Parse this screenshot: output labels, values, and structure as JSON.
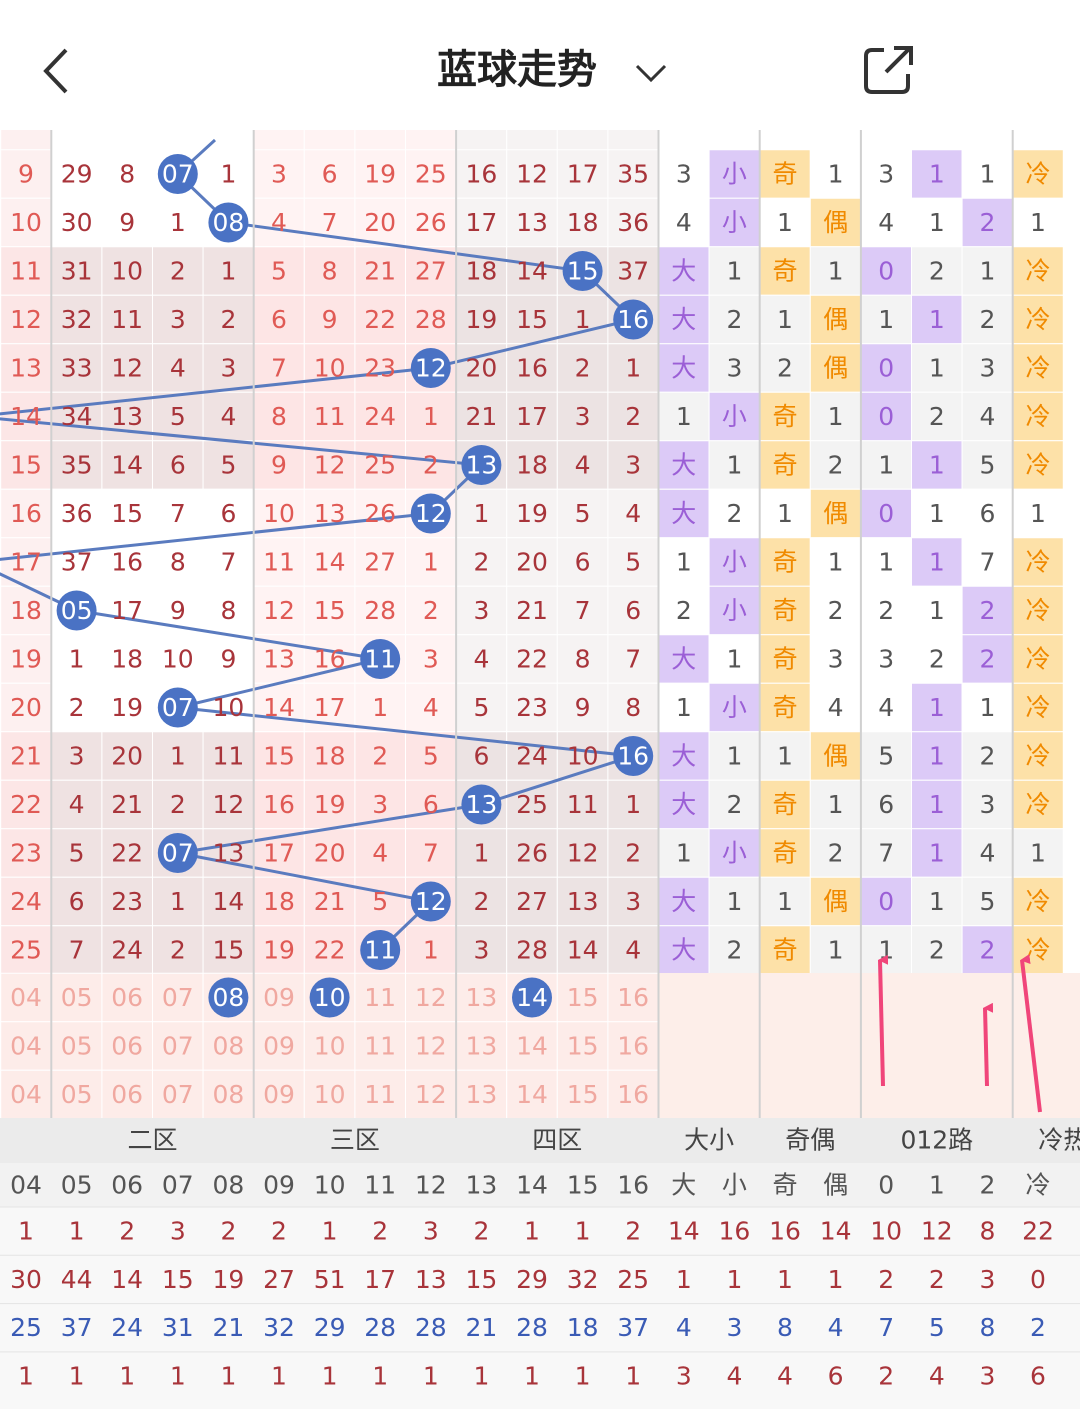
{
  "header": {
    "title": "蓝球走势"
  },
  "grid": {
    "rows": [
      {
        "nums": [
          9,
          29,
          8,
          {
            "ball": "07"
          },
          1,
          3,
          6,
          19,
          25,
          16,
          12,
          17,
          35
        ],
        "stats": [
          3,
          {
            "hit": "小"
          },
          {
            "hit": "奇"
          },
          1,
          3,
          {
            "hit": "1"
          },
          1,
          {
            "hit": "冷"
          }
        ]
      },
      {
        "nums": [
          10,
          30,
          9,
          1,
          {
            "ball": "08"
          },
          4,
          7,
          20,
          26,
          17,
          13,
          18,
          36
        ],
        "stats": [
          4,
          {
            "hit": "小"
          },
          1,
          {
            "hit": "偶"
          },
          4,
          1,
          {
            "hit": "2"
          },
          1
        ]
      },
      {
        "nums": [
          11,
          31,
          10,
          2,
          1,
          5,
          8,
          21,
          27,
          18,
          14,
          {
            "ball": "15"
          },
          37
        ],
        "stats": [
          {
            "hit": "大"
          },
          1,
          {
            "hit": "奇"
          },
          1,
          {
            "hit": "0"
          },
          2,
          1,
          {
            "hit": "冷"
          }
        ]
      },
      {
        "nums": [
          12,
          32,
          11,
          3,
          2,
          6,
          9,
          22,
          28,
          19,
          15,
          1,
          {
            "ball": "16"
          }
        ],
        "stats": [
          {
            "hit": "大"
          },
          2,
          1,
          {
            "hit": "偶"
          },
          1,
          {
            "hit": "1"
          },
          2,
          {
            "hit": "冷"
          }
        ]
      },
      {
        "nums": [
          13,
          33,
          12,
          4,
          3,
          7,
          10,
          23,
          {
            "ball": "12"
          },
          20,
          16,
          2,
          1
        ],
        "stats": [
          {
            "hit": "大"
          },
          3,
          2,
          {
            "hit": "偶"
          },
          {
            "hit": "0"
          },
          1,
          3,
          {
            "hit": "冷"
          }
        ]
      },
      {
        "nums": [
          14,
          34,
          13,
          5,
          4,
          8,
          11,
          24,
          1,
          21,
          17,
          3,
          2
        ],
        "stats": [
          1,
          {
            "hit": "小"
          },
          {
            "hit": "奇"
          },
          1,
          {
            "hit": "0"
          },
          2,
          4,
          {
            "hit": "冷"
          }
        ]
      },
      {
        "nums": [
          15,
          35,
          14,
          6,
          5,
          9,
          12,
          25,
          2,
          {
            "ball": "13"
          },
          18,
          4,
          3
        ],
        "stats": [
          {
            "hit": "大"
          },
          1,
          {
            "hit": "奇"
          },
          2,
          1,
          {
            "hit": "1"
          },
          5,
          {
            "hit": "冷"
          }
        ]
      },
      {
        "nums": [
          16,
          36,
          15,
          7,
          6,
          10,
          13,
          26,
          {
            "ball": "12"
          },
          1,
          19,
          5,
          4
        ],
        "stats": [
          {
            "hit": "大"
          },
          2,
          1,
          {
            "hit": "偶"
          },
          {
            "hit": "0"
          },
          1,
          6,
          1
        ]
      },
      {
        "nums": [
          17,
          37,
          16,
          8,
          7,
          11,
          14,
          27,
          1,
          2,
          20,
          6,
          5
        ],
        "stats": [
          1,
          {
            "hit": "小"
          },
          {
            "hit": "奇"
          },
          1,
          1,
          {
            "hit": "1"
          },
          7,
          {
            "hit": "冷"
          }
        ]
      },
      {
        "nums": [
          18,
          {
            "ball": "05"
          },
          17,
          9,
          8,
          12,
          15,
          28,
          2,
          3,
          21,
          7,
          6
        ],
        "stats": [
          2,
          {
            "hit": "小"
          },
          {
            "hit": "奇"
          },
          2,
          2,
          1,
          {
            "hit": "2"
          },
          {
            "hit": "冷"
          }
        ]
      },
      {
        "nums": [
          19,
          1,
          18,
          10,
          9,
          13,
          16,
          {
            "ball": "11"
          },
          3,
          4,
          22,
          8,
          7
        ],
        "stats": [
          {
            "hit": "大"
          },
          1,
          {
            "hit": "奇"
          },
          3,
          3,
          2,
          {
            "hit": "2"
          },
          {
            "hit": "冷"
          }
        ]
      },
      {
        "nums": [
          20,
          2,
          19,
          {
            "ball": "07"
          },
          10,
          14,
          17,
          1,
          4,
          5,
          23,
          9,
          8
        ],
        "stats": [
          1,
          {
            "hit": "小"
          },
          {
            "hit": "奇"
          },
          4,
          4,
          {
            "hit": "1"
          },
          1,
          {
            "hit": "冷"
          }
        ]
      },
      {
        "nums": [
          21,
          3,
          20,
          1,
          11,
          15,
          18,
          2,
          5,
          6,
          24,
          10,
          {
            "ball": "16"
          }
        ],
        "stats": [
          {
            "hit": "大"
          },
          1,
          1,
          {
            "hit": "偶"
          },
          5,
          {
            "hit": "1"
          },
          2,
          {
            "hit": "冷"
          }
        ]
      },
      {
        "nums": [
          22,
          4,
          21,
          2,
          12,
          16,
          19,
          3,
          6,
          {
            "ball": "13"
          },
          25,
          11,
          1
        ],
        "stats": [
          {
            "hit": "大"
          },
          2,
          {
            "hit": "奇"
          },
          1,
          6,
          {
            "hit": "1"
          },
          3,
          {
            "hit": "冷"
          }
        ]
      },
      {
        "nums": [
          23,
          5,
          22,
          {
            "ball": "07"
          },
          13,
          17,
          20,
          4,
          7,
          1,
          26,
          12,
          2
        ],
        "stats": [
          1,
          {
            "hit": "小"
          },
          {
            "hit": "奇"
          },
          2,
          7,
          {
            "hit": "1"
          },
          4,
          1
        ]
      },
      {
        "nums": [
          24,
          6,
          23,
          1,
          14,
          18,
          21,
          5,
          {
            "ball": "12"
          },
          2,
          27,
          13,
          3
        ],
        "stats": [
          {
            "hit": "大"
          },
          1,
          1,
          {
            "hit": "偶"
          },
          {
            "hit": "0"
          },
          1,
          5,
          {
            "hit": "冷"
          }
        ]
      },
      {
        "nums": [
          25,
          7,
          24,
          2,
          15,
          19,
          22,
          {
            "ball": "11"
          },
          1,
          3,
          28,
          14,
          4
        ],
        "stats": [
          {
            "hit": "大"
          },
          2,
          {
            "hit": "奇"
          },
          1,
          1,
          2,
          {
            "hit": "2"
          },
          {
            "hit": "冷"
          }
        ]
      }
    ]
  },
  "forecast": {
    "rows": [
      [
        "04",
        "05",
        "06",
        "07",
        {
          "ball": "08"
        },
        "09",
        {
          "ball": "10"
        },
        "11",
        "12",
        "13",
        {
          "ball": "14"
        },
        "15",
        "16"
      ],
      [
        "04",
        "05",
        "06",
        "07",
        "08",
        "09",
        "10",
        "11",
        "12",
        "13",
        "14",
        "15",
        "16"
      ],
      [
        "04",
        "05",
        "06",
        "07",
        "08",
        "09",
        "10",
        "11",
        "12",
        "13",
        "14",
        "15",
        "16"
      ]
    ]
  },
  "footer": {
    "groups": [
      "二区",
      "三区",
      "四区",
      "大小",
      "奇偶",
      "012路",
      "冷热"
    ],
    "columns": [
      "04",
      "05",
      "06",
      "07",
      "08",
      "09",
      "10",
      "11",
      "12",
      "13",
      "14",
      "15",
      "16",
      "大",
      "小",
      "奇",
      "偶",
      "0",
      "1",
      "2",
      "冷"
    ],
    "rows": [
      [
        1,
        1,
        2,
        3,
        2,
        2,
        1,
        2,
        3,
        2,
        1,
        1,
        2,
        14,
        16,
        16,
        14,
        10,
        12,
        8,
        22
      ],
      [
        30,
        44,
        14,
        15,
        19,
        27,
        51,
        17,
        13,
        15,
        29,
        32,
        25,
        1,
        1,
        1,
        1,
        2,
        2,
        3,
        0
      ],
      [
        25,
        37,
        24,
        31,
        21,
        32,
        29,
        28,
        28,
        21,
        28,
        18,
        37,
        4,
        3,
        8,
        4,
        7,
        5,
        8,
        2
      ],
      [
        1,
        1,
        1,
        1,
        1,
        1,
        1,
        1,
        1,
        1,
        1,
        1,
        1,
        3,
        4,
        4,
        6,
        2,
        4,
        3,
        6
      ]
    ]
  }
}
